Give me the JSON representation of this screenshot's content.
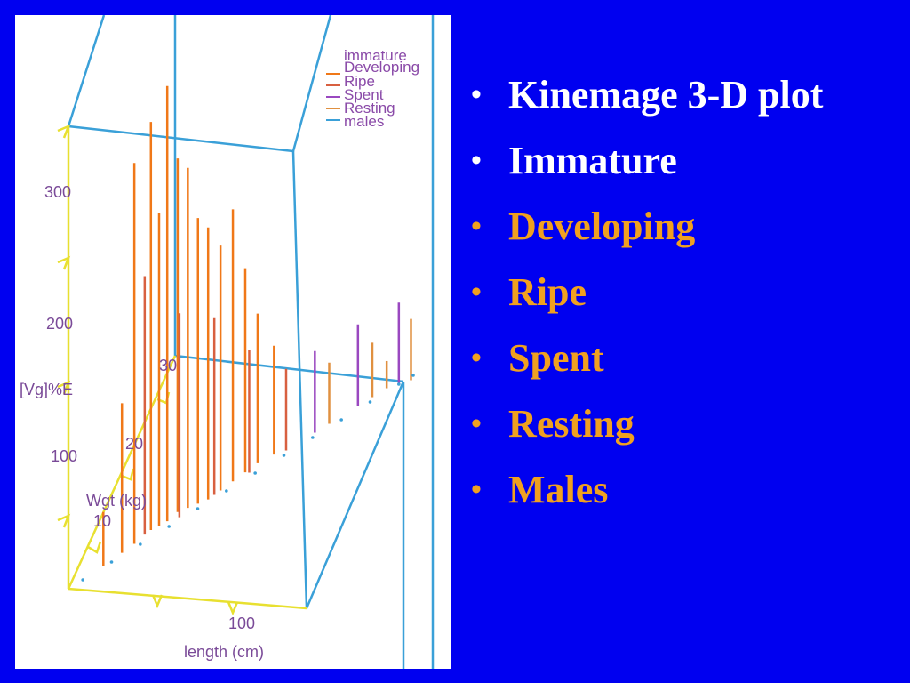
{
  "colors": {
    "background": "#0000f0",
    "text_white": "#ffffff",
    "text_orange": "#f0a020",
    "box": "#3aa0d8",
    "axis": "#e8e030",
    "developing": "#f07818",
    "ripe": "#d86040",
    "spent": "#9a48c0",
    "resting": "#e09040",
    "males": "#3aa0d8",
    "immature": "#a050c0"
  },
  "bullets": [
    {
      "text": "Kinemage 3-D plot",
      "color": "#ffffff"
    },
    {
      "text": "Immature",
      "color": "#ffffff"
    },
    {
      "text": "Developing",
      "color": "#f0a020"
    },
    {
      "text": "Ripe",
      "color": "#f0a020"
    },
    {
      "text": "Spent",
      "color": "#f0a020"
    },
    {
      "text": "Resting",
      "color": "#f0a020"
    },
    {
      "text": "Males",
      "color": "#f0a020"
    }
  ],
  "bullet_glyph": "•",
  "chart_data": {
    "type": "scatter",
    "title": "",
    "xlabel": "length (cm)",
    "ylabel": "Wgt (kg)",
    "zlabel": "[Vg]%E",
    "x_ticks": [
      "100"
    ],
    "y_ticks": [
      "10",
      "20",
      "30"
    ],
    "z_ticks": [
      "100",
      "200",
      "300"
    ],
    "zlim": [
      0,
      340
    ],
    "legend": [
      "immature",
      "Developing",
      "Ripe",
      "Spent",
      "Resting",
      "males"
    ],
    "legend_position": "top-right",
    "series": [
      {
        "name": "Developing",
        "color": "#f07818",
        "points": [
          [
            12,
            5,
            40
          ],
          [
            18,
            8,
            110
          ],
          [
            22,
            10,
            280
          ],
          [
            27,
            13,
            300
          ],
          [
            30,
            14,
            230
          ],
          [
            33,
            15,
            320
          ],
          [
            36,
            17,
            260
          ],
          [
            40,
            18,
            250
          ],
          [
            44,
            19,
            210
          ],
          [
            48,
            20,
            200
          ],
          [
            52,
            22,
            180
          ],
          [
            56,
            24,
            200
          ],
          [
            60,
            26,
            150
          ],
          [
            64,
            28,
            110
          ],
          [
            70,
            30,
            80
          ]
        ]
      },
      {
        "name": "Ripe",
        "color": "#d86040",
        "points": [
          [
            25,
            12,
            190
          ],
          [
            38,
            16,
            150
          ],
          [
            50,
            21,
            130
          ],
          [
            62,
            26,
            90
          ],
          [
            75,
            31,
            60
          ]
        ]
      },
      {
        "name": "Spent",
        "color": "#9a48c0",
        "points": [
          [
            85,
            35,
            60
          ],
          [
            100,
            41,
            60
          ],
          [
            115,
            46,
            60
          ]
        ]
      },
      {
        "name": "Resting",
        "color": "#e09040",
        "points": [
          [
            90,
            37,
            45
          ],
          [
            105,
            43,
            40
          ],
          [
            120,
            47,
            45
          ],
          [
            110,
            45,
            20
          ]
        ]
      },
      {
        "name": "males",
        "color": "#3aa0d8",
        "points": [
          [
            5,
            2,
            0
          ],
          [
            15,
            6,
            0
          ],
          [
            25,
            10,
            0
          ],
          [
            35,
            14,
            0
          ],
          [
            45,
            18,
            0
          ],
          [
            55,
            22,
            0
          ],
          [
            65,
            26,
            0
          ],
          [
            75,
            30,
            0
          ],
          [
            85,
            34,
            0
          ],
          [
            95,
            38,
            0
          ],
          [
            105,
            42,
            0
          ],
          [
            115,
            46,
            0
          ],
          [
            120,
            48,
            0
          ]
        ]
      }
    ]
  }
}
